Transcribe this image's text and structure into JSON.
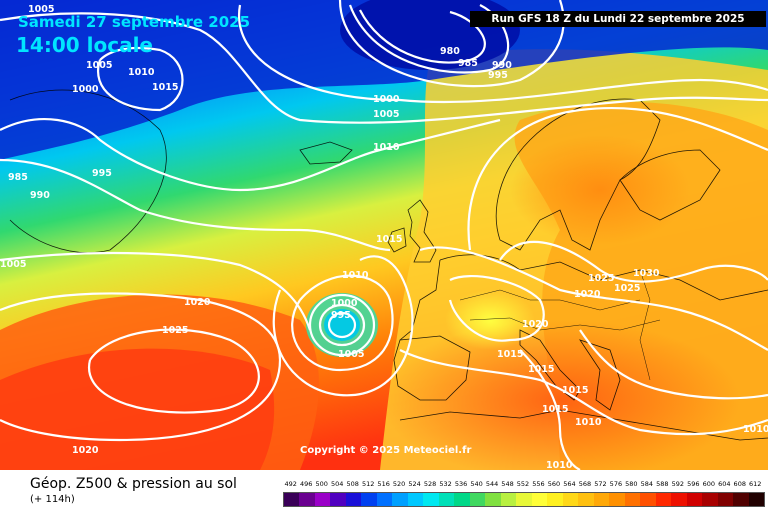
{
  "header": {
    "date": "Samedi 27 septembre 2025",
    "time": "14:00 locale",
    "run": "Run GFS 18 Z du Lundi 22 septembre 2025"
  },
  "copyright": "Copyright © 2025 Meteociel.fr",
  "legend": {
    "title": "Géop. Z500 & pression au sol",
    "subtitle": "(+ 114h)",
    "scale": [
      "492",
      "496",
      "500",
      "504",
      "508",
      "512",
      "516",
      "520",
      "524",
      "528",
      "532",
      "536",
      "540",
      "544",
      "548",
      "552",
      "556",
      "560",
      "564",
      "568",
      "572",
      "576",
      "580",
      "584",
      "588",
      "592",
      "596",
      "600",
      "604",
      "608",
      "612"
    ],
    "colors": [
      "#3a0058",
      "#6a0090",
      "#9a00c8",
      "#5000c0",
      "#1a10d8",
      "#0040f0",
      "#0070ff",
      "#00a0ff",
      "#00c8ff",
      "#00e8f0",
      "#00e0b8",
      "#00d888",
      "#40d860",
      "#80e040",
      "#b8f040",
      "#e8f838",
      "#ffff38",
      "#fff020",
      "#ffd818",
      "#ffc010",
      "#ffa808",
      "#ff9000",
      "#ff7000",
      "#ff5000",
      "#ff2800",
      "#ee1000",
      "#d00000",
      "#a80000",
      "#800000",
      "#500000",
      "#200000"
    ]
  },
  "isobars": [
    "1005",
    "1005",
    "1010",
    "1015",
    "1000",
    "985",
    "990",
    "995",
    "980",
    "985",
    "990",
    "995",
    "1000",
    "1005",
    "1010",
    "1015",
    "1010",
    "1020",
    "1025",
    "1000",
    "995",
    "1005",
    "1020",
    "1015",
    "1025",
    "1030",
    "1025",
    "1020",
    "1015",
    "1015",
    "1015",
    "1010",
    "1010",
    "1020",
    "1005",
    "1010"
  ]
}
